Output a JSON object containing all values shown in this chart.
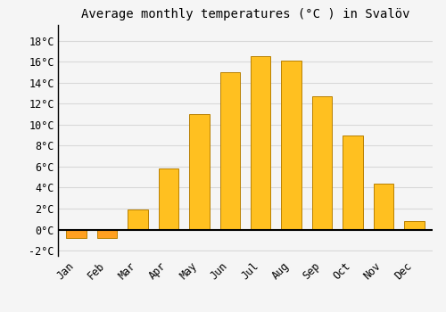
{
  "title": "Average monthly temperatures (°C ) in Svalöv",
  "months": [
    "Jan",
    "Feb",
    "Mar",
    "Apr",
    "May",
    "Jun",
    "Jul",
    "Aug",
    "Sep",
    "Oct",
    "Nov",
    "Dec"
  ],
  "values": [
    -0.8,
    -0.8,
    1.9,
    5.8,
    11.0,
    15.0,
    16.5,
    16.1,
    12.7,
    9.0,
    4.4,
    0.8
  ],
  "bar_color": "#FFC020",
  "bar_color_neg": "#FFA020",
  "edge_color": "#B88000",
  "ylim": [
    -2.5,
    19.5
  ],
  "yticks": [
    -2,
    0,
    2,
    4,
    6,
    8,
    10,
    12,
    14,
    16,
    18
  ],
  "background_color": "#f5f5f5",
  "grid_color": "#d8d8d8",
  "title_fontsize": 10,
  "tick_fontsize": 8.5
}
